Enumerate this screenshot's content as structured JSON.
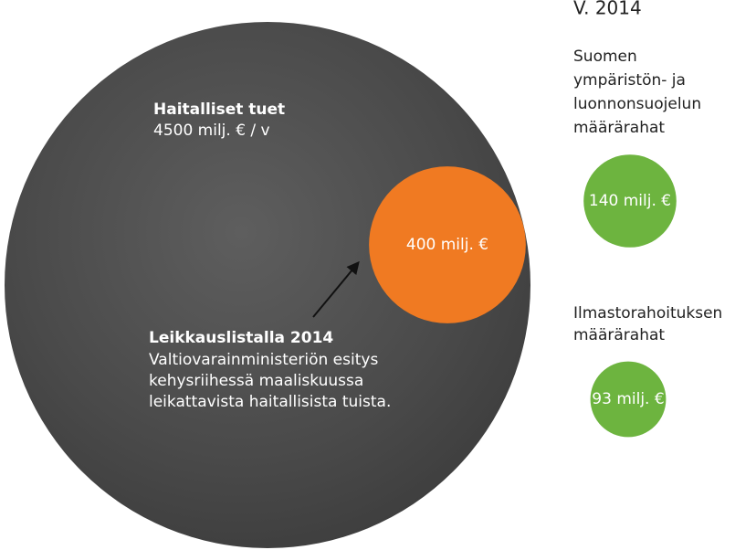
{
  "chart_data": {
    "type": "bubble",
    "title": "V. 2014",
    "categories": [
      [
        "Haitalliset tuet"
      ],
      [
        "Leikkauslistalla 2014"
      ],
      [
        "Suomen",
        "ympäristön- ja",
        "luonnonsuojelun",
        "määrärahat"
      ],
      [
        "Ilmastorahoituksen",
        "määrärahat"
      ]
    ],
    "values": [
      4500,
      400,
      140,
      93
    ],
    "value_labels": [
      "4500 milj. € / v",
      "400 milj. €",
      "140 milj. €",
      "93 milj. €"
    ],
    "colors": [
      "#4a4a4a",
      "#f07a22",
      "#6db43f",
      "#6db43f"
    ],
    "annotation": [
      "Valtiovarainministeriön esitys",
      "kehysriihessä maaliskuussa",
      "leikattavista haitallisista tuista."
    ]
  }
}
